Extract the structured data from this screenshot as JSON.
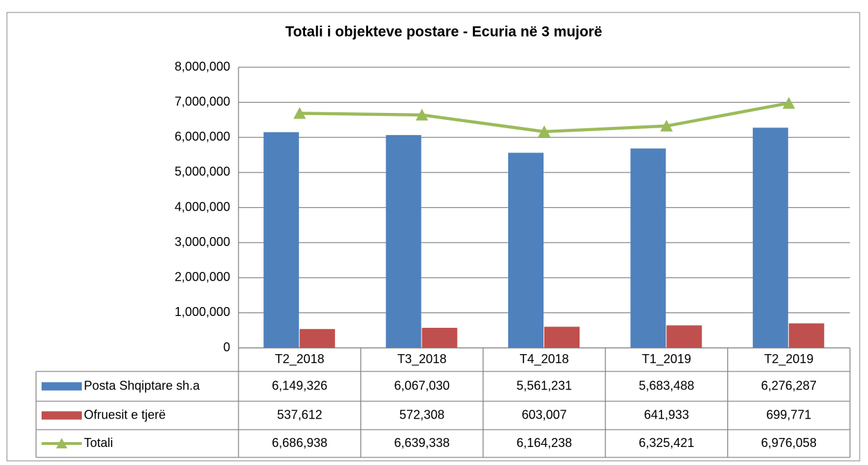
{
  "chart_data": {
    "type": "bar",
    "title": "Totali i objekteve postare - Ecuria në 3 mujorë",
    "categories": [
      "T2_2018",
      "T3_2018",
      "T4_2018",
      "T1_2019",
      "T2_2019"
    ],
    "series": [
      {
        "name": "Posta Shqiptare sh.a",
        "color": "#4f81bd",
        "type": "bar",
        "values": [
          6149326,
          6067030,
          5561231,
          5683488,
          6276287
        ],
        "value_labels": [
          "6,149,326",
          "6,067,030",
          "5,561,231",
          "5,683,488",
          "6,276,287"
        ]
      },
      {
        "name": "Ofruesit e tjerë",
        "color": "#c0504d",
        "type": "bar",
        "values": [
          537612,
          572308,
          603007,
          641933,
          699771
        ],
        "value_labels": [
          "537,612",
          "572,308",
          "603,007",
          "641,933",
          "699,771"
        ]
      },
      {
        "name": "Totali",
        "color": "#9bbb59",
        "type": "line",
        "values": [
          6686938,
          6639338,
          6164238,
          6325421,
          6976058
        ],
        "value_labels": [
          "6,686,938",
          "6,639,338",
          "6,164,238",
          "6,325,421",
          "6,976,058"
        ]
      }
    ],
    "ylim": [
      0,
      8000000
    ],
    "yticks": [
      0,
      {
        "value": 1000000,
        "label": "1,000,000"
      },
      {
        "value": 2000000,
        "label": "2,000,000"
      },
      {
        "value": 3000000,
        "label": "3,000,000"
      },
      {
        "value": 4000000,
        "label": "4,000,000"
      },
      {
        "value": 5000000,
        "label": "5,000,000"
      },
      {
        "value": 6000000,
        "label": "6,000,000"
      },
      {
        "value": 7000000,
        "label": "7,000,000"
      },
      {
        "value": 8000000,
        "label": "8,000,000"
      }
    ],
    "grid": true
  }
}
